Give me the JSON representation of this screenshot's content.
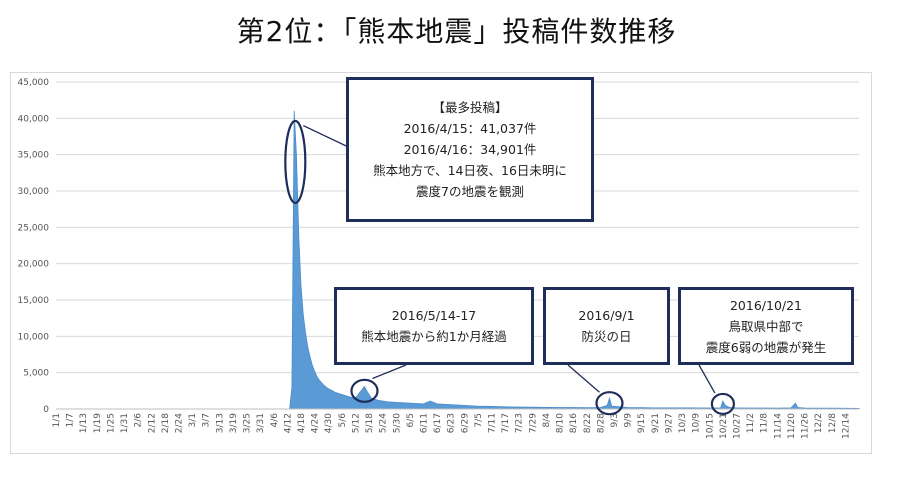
{
  "title": "第2位：「熊本地震」投稿件数推移",
  "colors": {
    "area": "#5b9bd5",
    "area_line": "#4a8ccc",
    "grid": "#d9d9d9",
    "note_border": "#1f2d5a"
  },
  "annotations": {
    "main": {
      "lines": [
        "【最多投稿】",
        "2016/4/15：41,037件",
        "2016/4/16：34,901件",
        "熊本地方で、14日夜、16日未明に",
        "震度7の地震を観測"
      ]
    },
    "may": {
      "lines": [
        "2016/5/14-17",
        "熊本地震から約1か月経過"
      ]
    },
    "sep": {
      "lines": [
        "2016/9/1",
        "防災の日"
      ]
    },
    "oct": {
      "lines": [
        "2016/10/21",
        "鳥取県中部で",
        "震度6弱の地震が発生"
      ]
    }
  },
  "chart_data": {
    "type": "area",
    "title": "",
    "xlabel": "",
    "ylabel": "",
    "ylim": [
      0,
      45000
    ],
    "y_ticks": [
      "0",
      "5,000",
      "10,000",
      "15,000",
      "20,000",
      "25,000",
      "30,000",
      "35,000",
      "40,000",
      "45,000"
    ],
    "x_ticks": [
      "1/1",
      "1/7",
      "1/13",
      "1/19",
      "1/25",
      "1/31",
      "2/6",
      "2/12",
      "2/18",
      "2/24",
      "3/1",
      "3/7",
      "3/13",
      "3/19",
      "3/25",
      "3/31",
      "4/6",
      "4/12",
      "4/18",
      "4/24",
      "4/30",
      "5/6",
      "5/12",
      "5/18",
      "5/24",
      "5/30",
      "6/5",
      "6/11",
      "6/17",
      "6/23",
      "6/29",
      "7/5",
      "7/11",
      "7/17",
      "7/23",
      "7/29",
      "8/4",
      "8/10",
      "8/16",
      "8/22",
      "8/28",
      "9/3",
      "9/9",
      "9/15",
      "9/21",
      "9/27",
      "10/3",
      "10/9",
      "10/15",
      "10/21",
      "10/27",
      "11/2",
      "11/8",
      "11/14",
      "11/20",
      "11/26",
      "12/2",
      "12/8",
      "12/14"
    ],
    "grid": true,
    "legend": "none",
    "series": [
      {
        "points": [
          [
            "1/1",
            0
          ],
          [
            "4/13",
            0
          ],
          [
            "4/14",
            3000
          ],
          [
            "4/15",
            41037
          ],
          [
            "4/16",
            34901
          ],
          [
            "4/17",
            24000
          ],
          [
            "4/18",
            17000
          ],
          [
            "4/19",
            13000
          ],
          [
            "4/20",
            10500
          ],
          [
            "4/21",
            8500
          ],
          [
            "4/22",
            7200
          ],
          [
            "4/23",
            6000
          ],
          [
            "4/24",
            5200
          ],
          [
            "4/25",
            4500
          ],
          [
            "4/26",
            4000
          ],
          [
            "4/28",
            3300
          ],
          [
            "4/30",
            2800
          ],
          [
            "5/3",
            2300
          ],
          [
            "5/6",
            2000
          ],
          [
            "5/9",
            1700
          ],
          [
            "5/12",
            1500
          ],
          [
            "5/14",
            2300
          ],
          [
            "5/16",
            3100
          ],
          [
            "5/17",
            2500
          ],
          [
            "5/19",
            1500
          ],
          [
            "5/22",
            1200
          ],
          [
            "5/26",
            1000
          ],
          [
            "5/30",
            900
          ],
          [
            "6/5",
            800
          ],
          [
            "6/11",
            700
          ],
          [
            "6/14",
            1100
          ],
          [
            "6/17",
            700
          ],
          [
            "6/23",
            600
          ],
          [
            "6/29",
            500
          ],
          [
            "7/5",
            400
          ],
          [
            "7/11",
            350
          ],
          [
            "7/17",
            300
          ],
          [
            "7/23",
            280
          ],
          [
            "7/29",
            250
          ],
          [
            "8/4",
            220
          ],
          [
            "8/10",
            200
          ],
          [
            "8/16",
            200
          ],
          [
            "8/22",
            180
          ],
          [
            "8/28",
            200
          ],
          [
            "8/31",
            500
          ],
          [
            "9/1",
            1500
          ],
          [
            "9/2",
            400
          ],
          [
            "9/9",
            200
          ],
          [
            "9/15",
            180
          ],
          [
            "9/21",
            160
          ],
          [
            "9/27",
            150
          ],
          [
            "10/3",
            150
          ],
          [
            "10/9",
            150
          ],
          [
            "10/15",
            140
          ],
          [
            "10/20",
            150
          ],
          [
            "10/21",
            1100
          ],
          [
            "10/22",
            500
          ],
          [
            "10/24",
            200
          ],
          [
            "10/27",
            150
          ],
          [
            "11/2",
            140
          ],
          [
            "11/8",
            130
          ],
          [
            "11/14",
            120
          ],
          [
            "11/20",
            150
          ],
          [
            "11/22",
            800
          ],
          [
            "11/23",
            200
          ],
          [
            "11/26",
            130
          ],
          [
            "12/2",
            120
          ],
          [
            "12/8",
            110
          ],
          [
            "12/14",
            100
          ],
          [
            "12/20",
            90
          ]
        ]
      }
    ]
  }
}
